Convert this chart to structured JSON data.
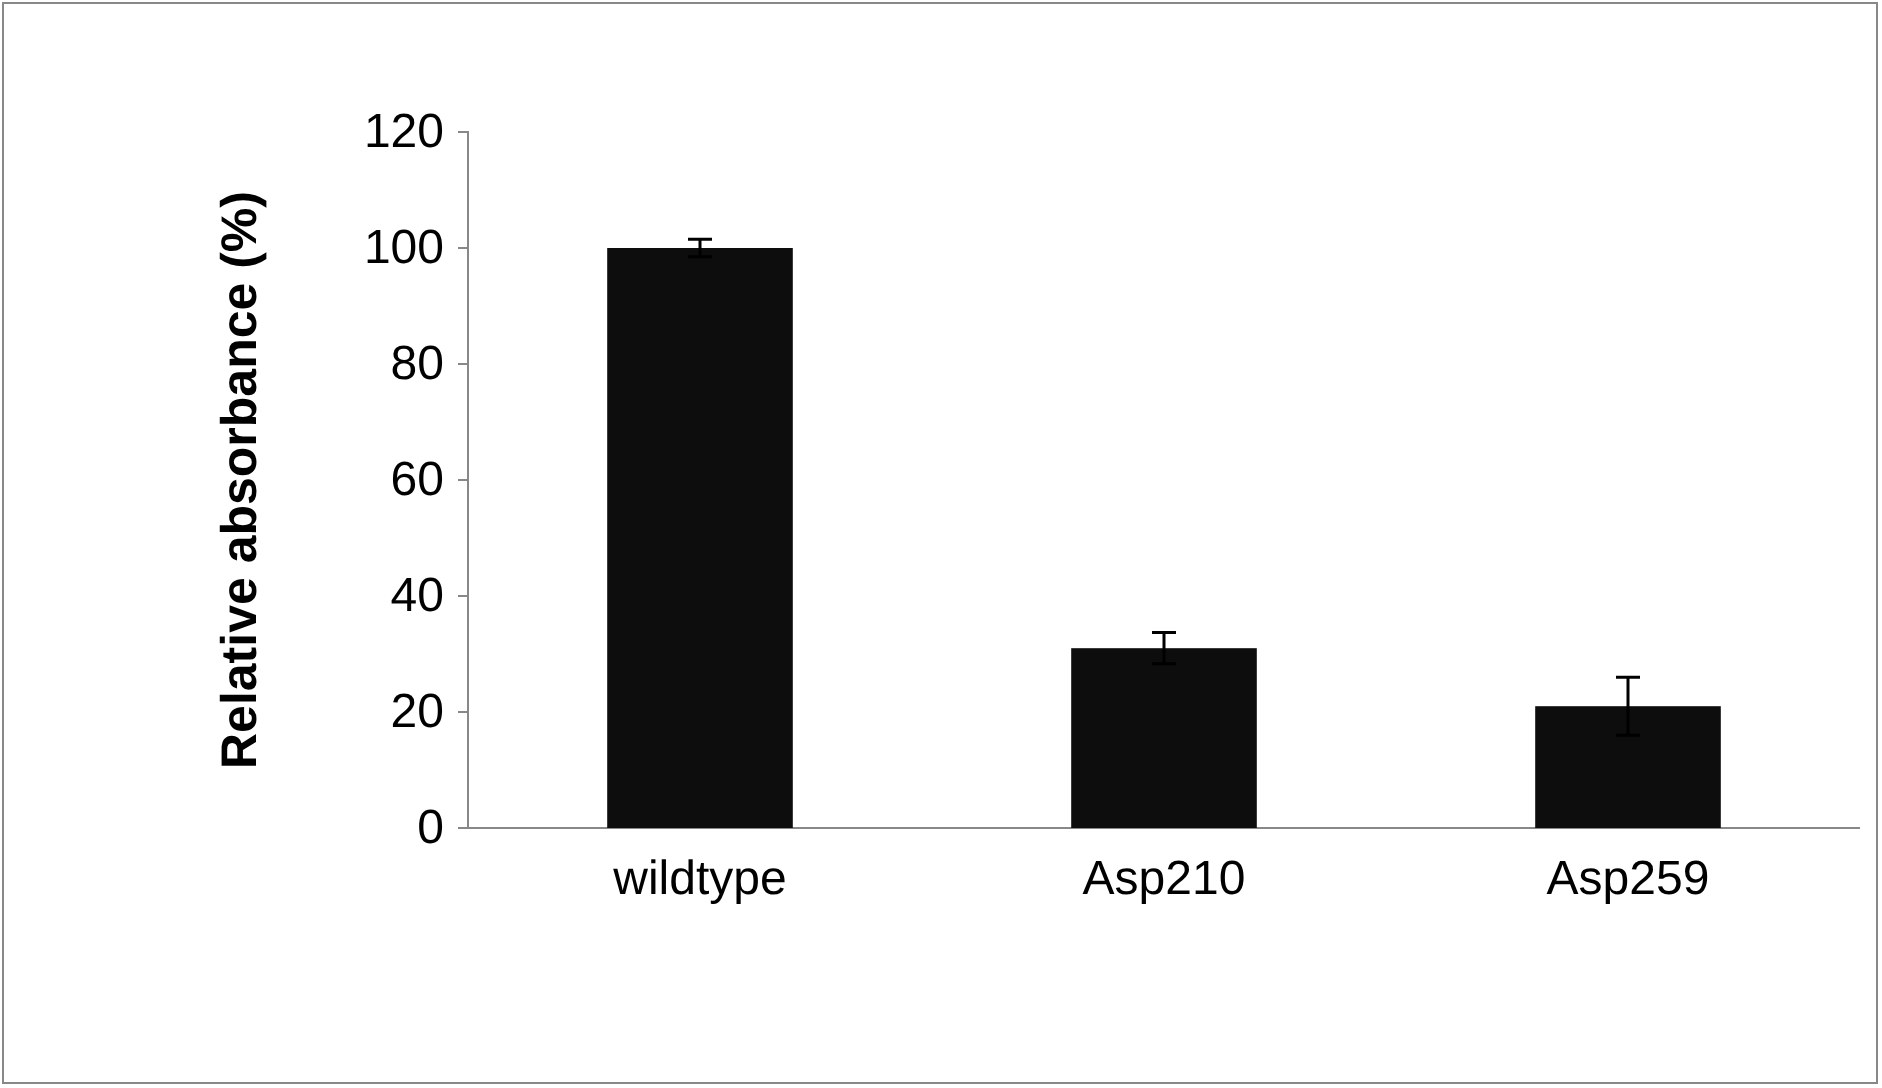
{
  "chart_data": {
    "type": "bar",
    "ylabel": "Relative absorbance (%)",
    "categories": [
      "wildtype",
      "Asp210",
      "Asp259"
    ],
    "values": [
      100,
      31,
      21
    ],
    "errors": [
      1.5,
      2.7,
      5
    ],
    "color": "#0d0d0d",
    "ylim": [
      0,
      120
    ],
    "yticks": [
      0,
      20,
      40,
      60,
      80,
      100,
      120
    ],
    "grid": false
  }
}
